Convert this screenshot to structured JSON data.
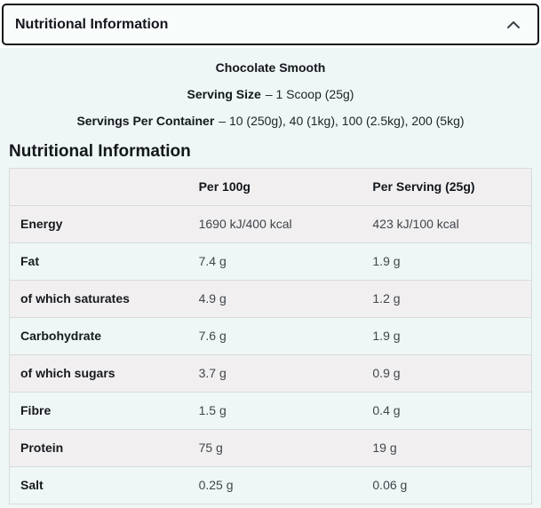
{
  "accordion": {
    "title": "Nutritional Information",
    "chevron_icon": "chevron-up"
  },
  "summary": {
    "flavour": "Chocolate Smooth",
    "serving_size": {
      "label": "Serving Size",
      "value": "– 1 Scoop (25g)"
    },
    "servings_per_container": {
      "label": "Servings Per Container",
      "value": "– 10 (250g), 40 (1kg), 100 (2.5kg), 200 (5kg)"
    }
  },
  "section_heading": "Nutritional Information",
  "table": {
    "columns": [
      "",
      "Per 100g",
      "Per Serving (25g)"
    ],
    "rows": [
      {
        "label": "Energy",
        "per_100g": "1690 kJ/400 kcal",
        "per_serving": "423 kJ/100 kcal"
      },
      {
        "label": "Fat",
        "per_100g": "7.4 g",
        "per_serving": "1.9 g"
      },
      {
        "label": "of which saturates",
        "per_100g": "4.9 g",
        "per_serving": "1.2 g"
      },
      {
        "label": "Carbohydrate",
        "per_100g": "7.6 g",
        "per_serving": "1.9 g"
      },
      {
        "label": "of which sugars",
        "per_100g": "3.7 g",
        "per_serving": "0.9 g"
      },
      {
        "label": "Fibre",
        "per_100g": "1.5 g",
        "per_serving": "0.4 g"
      },
      {
        "label": "Protein",
        "per_100g": "75 g",
        "per_serving": "19 g"
      },
      {
        "label": "Salt",
        "per_100g": "0.25 g",
        "per_serving": "0.06 g"
      }
    ]
  },
  "colors": {
    "accordion_border": "#111418",
    "accordion_bg": "#f8fcfb",
    "panel_bg": "#eff7f6",
    "row_alt_bg": "#f1eff0",
    "table_border": "#d7dcdc",
    "heading_text": "#14171c",
    "value_text": "#41454b"
  }
}
